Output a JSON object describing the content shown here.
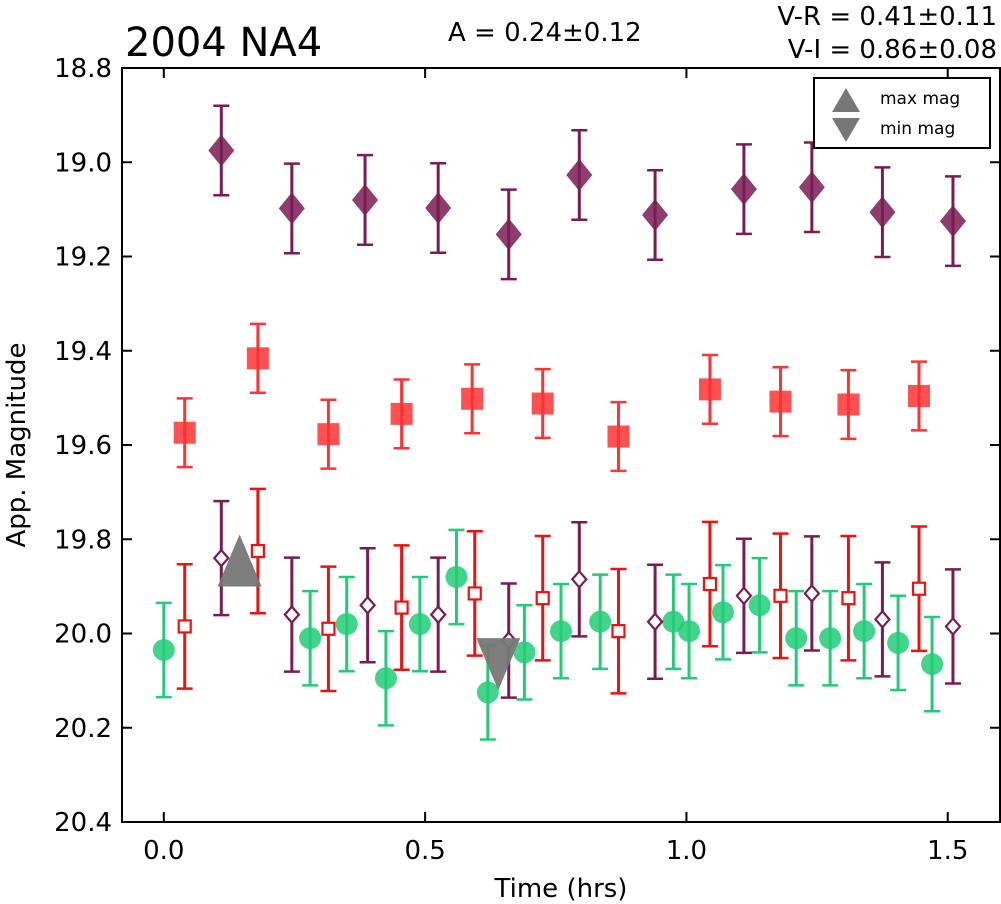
{
  "chart_data": {
    "type": "scatter",
    "title": "2004 NA4",
    "annotations": {
      "amplitude": "A  = 0.24±0.12",
      "v_r": "V-R = 0.41±0.11",
      "v_i": "V-I  = 0.86±0.08"
    },
    "xlabel": "Time (hrs)",
    "ylabel": "App. Magnitude",
    "xlim": [
      -0.08,
      1.6
    ],
    "ylim": [
      20.4,
      18.8
    ],
    "y_inverted": true,
    "grid": false,
    "xticks": [
      "0.0",
      "0.5",
      "1.0",
      "1.5"
    ],
    "yticks": [
      "18.8",
      "19.0",
      "19.2",
      "19.4",
      "19.6",
      "19.8",
      "20.0",
      "20.2",
      "20.4"
    ],
    "legend": {
      "placement": "top-right",
      "entries": [
        "max mag",
        "min mag"
      ]
    },
    "colors": {
      "purple": "#7a1b55",
      "red": "#ff3333",
      "red_err": "#ee1111",
      "green": "#22cc77",
      "gray": "#777777"
    },
    "series": [
      {
        "marker": "diamond",
        "filled": true,
        "color": "#7a1b55",
        "x": [
          0.11,
          0.245,
          0.385,
          0.525,
          0.66,
          0.795,
          0.94,
          1.11,
          1.24,
          1.375,
          1.51
        ],
        "y": [
          18.975,
          19.098,
          19.08,
          19.097,
          19.153,
          19.027,
          19.112,
          19.057,
          19.053,
          19.106,
          19.125
        ],
        "err": [
          0.095,
          0.095,
          0.095,
          0.095,
          0.095,
          0.095,
          0.095,
          0.095,
          0.095,
          0.095,
          0.095
        ]
      },
      {
        "marker": "square",
        "filled": true,
        "color": "#ff3333",
        "x": [
          0.04,
          0.18,
          0.315,
          0.455,
          0.59,
          0.725,
          0.87,
          1.045,
          1.18,
          1.31,
          1.445
        ],
        "y": [
          19.574,
          19.416,
          19.577,
          19.534,
          19.502,
          19.512,
          19.582,
          19.482,
          19.508,
          19.514,
          19.496
        ],
        "err": [
          0.073,
          0.073,
          0.073,
          0.073,
          0.073,
          0.073,
          0.073,
          0.073,
          0.073,
          0.073,
          0.073
        ]
      },
      {
        "marker": "circle",
        "filled": true,
        "color": "#22cc77",
        "x": [
          0.0,
          0.28,
          0.35,
          0.425,
          0.49,
          0.56,
          0.62,
          0.69,
          0.76,
          0.835,
          0.975,
          1.005,
          1.07,
          1.14,
          1.21,
          1.275,
          1.34,
          1.405,
          1.47
        ],
        "y": [
          20.035,
          20.01,
          19.98,
          20.095,
          19.98,
          19.88,
          20.125,
          20.04,
          19.995,
          19.975,
          19.975,
          19.995,
          19.955,
          19.94,
          20.01,
          20.01,
          19.995,
          20.02,
          20.065
        ],
        "err": [
          0.1,
          0.1,
          0.1,
          0.1,
          0.1,
          0.1,
          0.1,
          0.1,
          0.1,
          0.1,
          0.1,
          0.1,
          0.1,
          0.1,
          0.1,
          0.1,
          0.1,
          0.1,
          0.1
        ]
      },
      {
        "marker": "square",
        "filled": false,
        "color": "#ee1111",
        "x": [
          0.04,
          0.18,
          0.315,
          0.455,
          0.595,
          0.725,
          0.87,
          1.045,
          1.18,
          1.31,
          1.445
        ],
        "y": [
          19.985,
          19.825,
          19.99,
          19.945,
          19.915,
          19.925,
          19.995,
          19.895,
          19.92,
          19.925,
          19.905
        ],
        "err": [
          0.132,
          0.132,
          0.132,
          0.132,
          0.132,
          0.132,
          0.132,
          0.132,
          0.132,
          0.132,
          0.132
        ]
      },
      {
        "marker": "diamond",
        "filled": false,
        "color": "#7a1b55",
        "x": [
          0.11,
          0.245,
          0.39,
          0.525,
          0.66,
          0.795,
          0.94,
          1.11,
          1.24,
          1.375,
          1.51
        ],
        "y": [
          19.84,
          19.96,
          19.94,
          19.96,
          20.015,
          19.885,
          19.975,
          19.92,
          19.915,
          19.97,
          19.985
        ],
        "err": [
          0.121,
          0.121,
          0.121,
          0.121,
          0.121,
          0.121,
          0.121,
          0.121,
          0.121,
          0.121,
          0.121
        ]
      },
      {
        "marker": "triangle-up",
        "filled": true,
        "color": "#777777",
        "x": [
          0.145
        ],
        "y": [
          19.845
        ],
        "err": [
          0
        ]
      },
      {
        "marker": "triangle-down",
        "filled": true,
        "color": "#777777",
        "x": [
          0.64
        ],
        "y": [
          20.065
        ],
        "err": [
          0
        ]
      }
    ]
  }
}
